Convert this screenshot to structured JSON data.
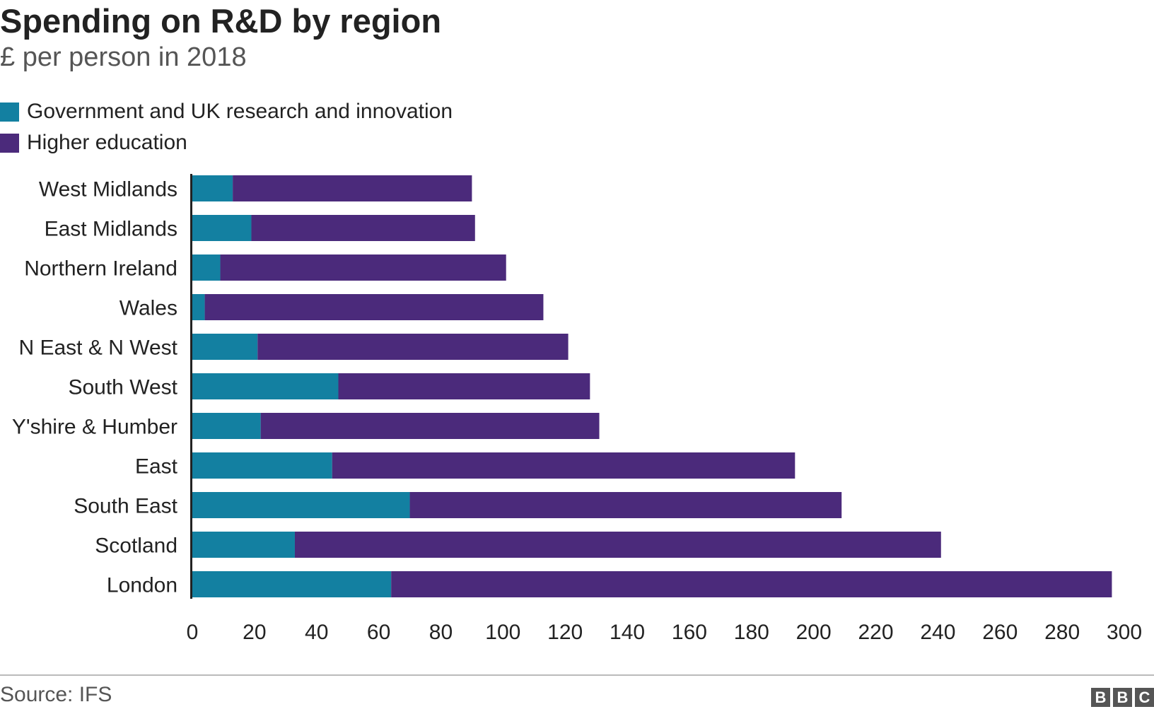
{
  "chart_data": {
    "type": "bar",
    "orientation": "horizontal",
    "stacked": true,
    "title": "Spending on R&D by region",
    "subtitle": "£ per person in 2018",
    "categories": [
      "West Midlands",
      "East Midlands",
      "Northern Ireland",
      "Wales",
      "N East & N West",
      "South West",
      "Y'shire & Humber",
      "East",
      "South East",
      "Scotland",
      "London"
    ],
    "series": [
      {
        "name": "Government and UK research and innovation",
        "color": "#1380a1",
        "values": [
          13,
          19,
          9,
          4,
          21,
          47,
          22,
          45,
          70,
          33,
          64
        ]
      },
      {
        "name": "Higher education",
        "color": "#4b2a7b",
        "values": [
          77,
          72,
          92,
          109,
          100,
          81,
          109,
          149,
          139,
          208,
          232
        ]
      }
    ],
    "xlim": [
      0,
      300
    ],
    "xticks": [
      0,
      20,
      40,
      60,
      80,
      100,
      120,
      140,
      160,
      180,
      200,
      220,
      240,
      260,
      280,
      300
    ],
    "grid": false,
    "legend_position": "top-left",
    "source": "Source: IFS"
  },
  "logo": [
    "B",
    "B",
    "C"
  ]
}
